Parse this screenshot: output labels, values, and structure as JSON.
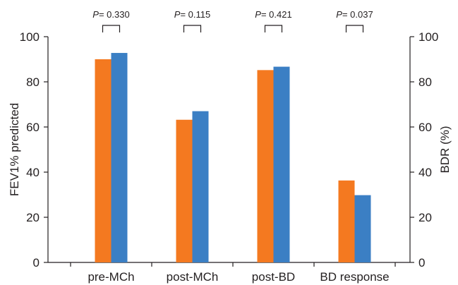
{
  "chart_data": {
    "type": "bar",
    "categories": [
      "pre-MCh",
      "post-MCh",
      "post-BD",
      "BD response"
    ],
    "series": [
      {
        "values": [
          90,
          63.2,
          85.2,
          36.3
        ],
        "color": "#f47920"
      },
      {
        "values": [
          92.8,
          67,
          86.7,
          29.8
        ],
        "color": "#3b7fc4"
      }
    ],
    "ylabel": "FEV1% predicted",
    "y2label": "BDR (%)",
    "ylim": [
      0,
      100
    ],
    "y2lim": [
      0,
      100
    ],
    "yticks": [
      0,
      20,
      40,
      60,
      80,
      100
    ],
    "y2ticks": [
      0,
      20,
      40,
      60,
      80,
      100
    ],
    "annotations": [
      {
        "prefix": "P",
        "text": "= 0.330"
      },
      {
        "prefix": "P",
        "text": "= 0.115"
      },
      {
        "prefix": "P",
        "text": "= 0.421"
      },
      {
        "prefix": "P",
        "text": "= 0.037"
      }
    ],
    "grid": false,
    "legend": "none"
  }
}
